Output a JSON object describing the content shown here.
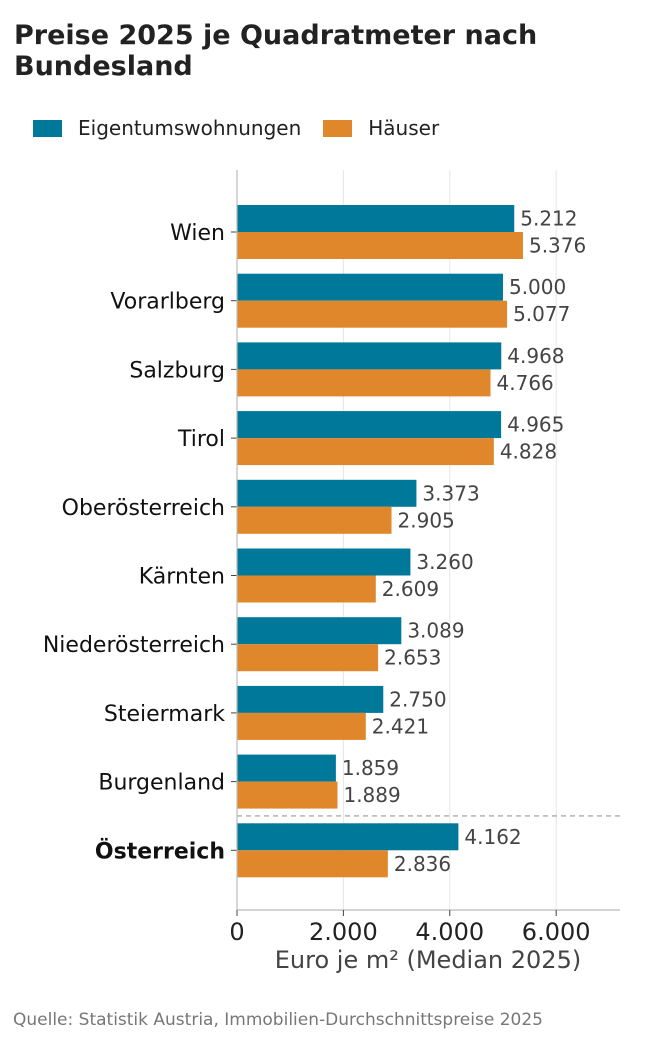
{
  "title": "Preise 2025 je Quadratmeter nach Bundesland",
  "source": "Quelle: Statistik Austria, Immobilien-Durchschnittspreise 2025",
  "colors": {
    "series1": "#00789a",
    "series2": "#e0872b",
    "text": "#222222",
    "value_text": "#444444"
  },
  "chart_data": {
    "type": "bar",
    "orientation": "horizontal",
    "title": "Preise 2025 je Quadratmeter nach Bundesland",
    "xlabel": "Euro je m² (Median 2025)",
    "ylabel": "",
    "xlim": [
      0,
      7200
    ],
    "xticks": [
      0,
      2000,
      4000,
      6000
    ],
    "xtick_labels": [
      "0",
      "2.000",
      "4.000",
      "6.000"
    ],
    "grid": "vertical",
    "legend": "top-left",
    "categories": [
      "Wien",
      "Vorarlberg",
      "Salzburg",
      "Tirol",
      "Oberösterreich",
      "Kärnten",
      "Niederösterreich",
      "Steiermark",
      "Burgenland",
      "Österreich"
    ],
    "highlight_category": "Österreich",
    "series": [
      {
        "name": "Eigentumswohnungen",
        "color": "#00789a",
        "values": [
          5212,
          5000,
          4968,
          4965,
          3373,
          3260,
          3089,
          2750,
          1859,
          4162
        ],
        "labels": [
          "5.212",
          "5.000",
          "4.968",
          "4.965",
          "3.373",
          "3.260",
          "3.089",
          "2.750",
          "1.859",
          "4.162"
        ]
      },
      {
        "name": "Häuser",
        "color": "#e0872b",
        "values": [
          5376,
          5077,
          4766,
          4828,
          2905,
          2609,
          2653,
          2421,
          1889,
          2836
        ],
        "labels": [
          "5.376",
          "5.077",
          "4.766",
          "4.828",
          "2.905",
          "2.609",
          "2.653",
          "2.421",
          "1.889",
          "2.836"
        ]
      }
    ]
  }
}
